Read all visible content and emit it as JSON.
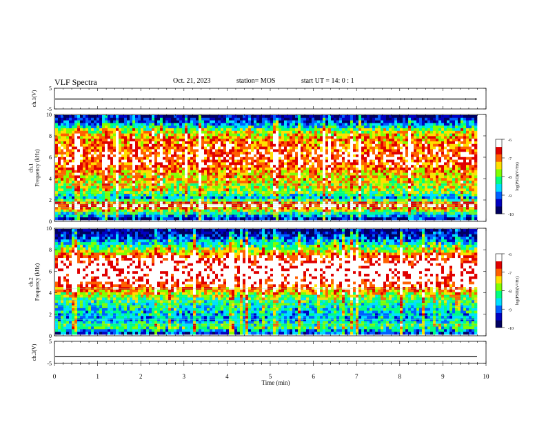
{
  "header": {
    "title": "VLF Spectra",
    "date": "Oct. 21, 2023",
    "station": "station= MOS",
    "start": "start  UT =   14: 0  : 1"
  },
  "chart_data": [
    {
      "type": "line",
      "panel": "ch1-waveform",
      "ylabel": "ch.1(V)",
      "yticks": [
        "5",
        "-5"
      ],
      "ylim": [
        -5,
        5
      ],
      "series": [
        {
          "values": [
            -0.2,
            -0.2
          ]
        }
      ]
    },
    {
      "type": "heatmap",
      "panel": "ch1-spectrogram",
      "ylabel": "ch.1\nFrequency (kHz)",
      "yticks": [
        "0",
        "2",
        "4",
        "6",
        "8",
        "10"
      ],
      "ylim": [
        0,
        10
      ],
      "xlim": [
        0,
        10
      ],
      "intensity_profile_by_freq": [
        0.15,
        0.5,
        0.9,
        0.3,
        0.55,
        0.6,
        0.65,
        0.7,
        0.8,
        0.85,
        0.8,
        0.75,
        0.7,
        0.55,
        0.25,
        0.05
      ],
      "colorbar": {
        "label": "log(PSD)(V²/Hz)",
        "ticks": [
          "-6",
          "-7",
          "-8",
          "-9",
          "-10"
        ],
        "range": [
          -10,
          -6
        ]
      }
    },
    {
      "type": "heatmap",
      "panel": "ch2-spectrogram",
      "ylabel": "ch.2\nFrequency (kHz)",
      "yticks": [
        "0",
        "2",
        "4",
        "6",
        "8",
        "10"
      ],
      "ylim": [
        0,
        10
      ],
      "xlim": [
        0,
        10
      ],
      "intensity_profile_by_freq": [
        0.2,
        0.5,
        0.3,
        0.35,
        0.4,
        0.5,
        0.65,
        0.85,
        0.95,
        0.98,
        0.95,
        0.85,
        0.6,
        0.4,
        0.2,
        0.05
      ],
      "colorbar": {
        "label": "log(PSD)(V²/Hz)",
        "ticks": [
          "-6",
          "-7",
          "-8",
          "-9",
          "-10"
        ],
        "range": [
          -10,
          -6
        ]
      }
    },
    {
      "type": "line",
      "panel": "ch3-waveform",
      "ylabel": "ch.3(V)",
      "yticks": [
        "5",
        "-5"
      ],
      "ylim": [
        -5,
        5
      ],
      "series": [
        {
          "values": [
            -2,
            -2
          ]
        }
      ]
    }
  ],
  "xaxis": {
    "label": "Time  (min)",
    "ticks": [
      "0",
      "1",
      "2",
      "3",
      "4",
      "5",
      "6",
      "7",
      "8",
      "9",
      "10"
    ],
    "range": [
      0,
      10
    ]
  },
  "colors": {
    "scale": [
      "#000060",
      "#0000c0",
      "#0060ff",
      "#00e0ff",
      "#00ff80",
      "#80ff00",
      "#ffe000",
      "#ff6000",
      "#e00000",
      "#ffffff"
    ]
  }
}
